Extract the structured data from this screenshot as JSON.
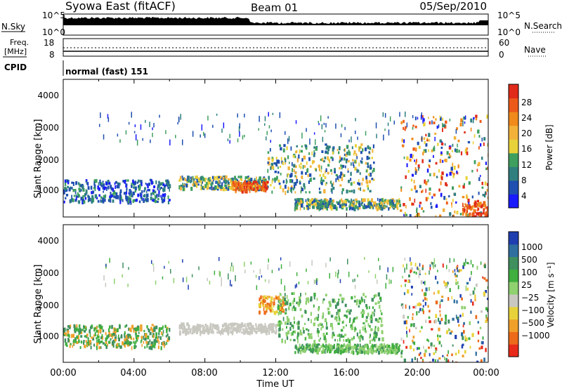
{
  "header": {
    "station": "Syowa East (fitACF)",
    "beam": "Beam 01",
    "date": "05/Sep/2010"
  },
  "noise_panel": {
    "left_label": "N.Sky",
    "right_label": "N.Search",
    "left_ticks": [
      "10^5",
      "10^0"
    ],
    "right_ticks": [
      "10^5",
      "10^0"
    ]
  },
  "freq_panel": {
    "left_label_1": "Freq.",
    "left_label_2": "[MHz]",
    "right_label": "Nave",
    "left_ticks": [
      "18",
      "8"
    ],
    "right_ticks": [
      "60",
      "0"
    ]
  },
  "cpid": {
    "label": "CPID",
    "mode": "normal (fast) 151"
  },
  "x_axis": {
    "ticks": [
      "00:00",
      "04:00",
      "08:00",
      "12:00",
      "16:00",
      "20:00",
      "00:00"
    ],
    "label": "Time UT"
  },
  "chart_data": [
    {
      "type": "heatmap",
      "panel": "power",
      "ylabel": "Slant Range [km]",
      "yticks": [
        "1000",
        "2000",
        "3000",
        "4000"
      ],
      "ylim": [
        200,
        4500
      ],
      "xlim_hours": [
        0,
        24
      ],
      "colorbar": {
        "label": "Power [dB]",
        "ticks": [
          "4",
          "8",
          "12",
          "16",
          "20",
          "24",
          "28"
        ],
        "colors": [
          "#1a1aff",
          "#1f4fb0",
          "#2f7f7f",
          "#3f9f5f",
          "#e8d23a",
          "#f2b23a",
          "#f08a1a",
          "#ec5a1a",
          "#e02a1a"
        ]
      },
      "echo_regions": [
        {
          "t0": 0.0,
          "t1": 6.0,
          "r0": 700,
          "r1": 1400,
          "level": "weak"
        },
        {
          "t0": 6.5,
          "t1": 11.5,
          "r0": 1100,
          "r1": 1500,
          "level": "moderate"
        },
        {
          "t0": 9.5,
          "t1": 11.5,
          "r0": 1050,
          "r1": 1350,
          "level": "strong"
        },
        {
          "t0": 11.5,
          "t1": 17.5,
          "r0": 1000,
          "r1": 2500,
          "level": "moderate"
        },
        {
          "t0": 13.0,
          "t1": 19.0,
          "r0": 500,
          "r1": 800,
          "level": "moderate"
        },
        {
          "t0": 19.0,
          "t1": 24.0,
          "r0": 200,
          "r1": 3400,
          "level": "mixed"
        },
        {
          "t0": 22.5,
          "t1": 24.0,
          "r0": 200,
          "r1": 700,
          "level": "strong"
        }
      ]
    },
    {
      "type": "heatmap",
      "panel": "velocity",
      "ylabel": "Slant Range [km]",
      "yticks": [
        "1000",
        "2000",
        "3000",
        "4000"
      ],
      "ylim": [
        200,
        4500
      ],
      "xlim_hours": [
        0,
        24
      ],
      "colorbar": {
        "label": "Velocity [m s⁻¹]",
        "ticks": [
          "1000",
          "500",
          "100",
          "25",
          "−25",
          "−100",
          "−500",
          "−1000"
        ],
        "colors": [
          "#1f3fb0",
          "#2f6fa0",
          "#3f8f5f",
          "#3faf3f",
          "#8fd06f",
          "#c8c8c0",
          "#e8d23a",
          "#f0a02a",
          "#ec6a1a",
          "#e82a1a"
        ]
      },
      "echo_regions": [
        {
          "t0": 0.0,
          "t1": 6.0,
          "r0": 700,
          "r1": 1400,
          "level": "toward"
        },
        {
          "t0": 6.5,
          "t1": 12.0,
          "r0": 1150,
          "r1": 1450,
          "level": "near-zero"
        },
        {
          "t0": 11.0,
          "t1": 12.5,
          "r0": 1800,
          "r1": 2300,
          "level": "away"
        },
        {
          "t0": 12.0,
          "t1": 18.0,
          "r0": 900,
          "r1": 2400,
          "level": "slow-toward"
        },
        {
          "t0": 13.0,
          "t1": 19.0,
          "r0": 550,
          "r1": 800,
          "level": "slow-toward"
        },
        {
          "t0": 19.0,
          "t1": 24.0,
          "r0": 200,
          "r1": 3400,
          "level": "mixed"
        }
      ]
    }
  ]
}
